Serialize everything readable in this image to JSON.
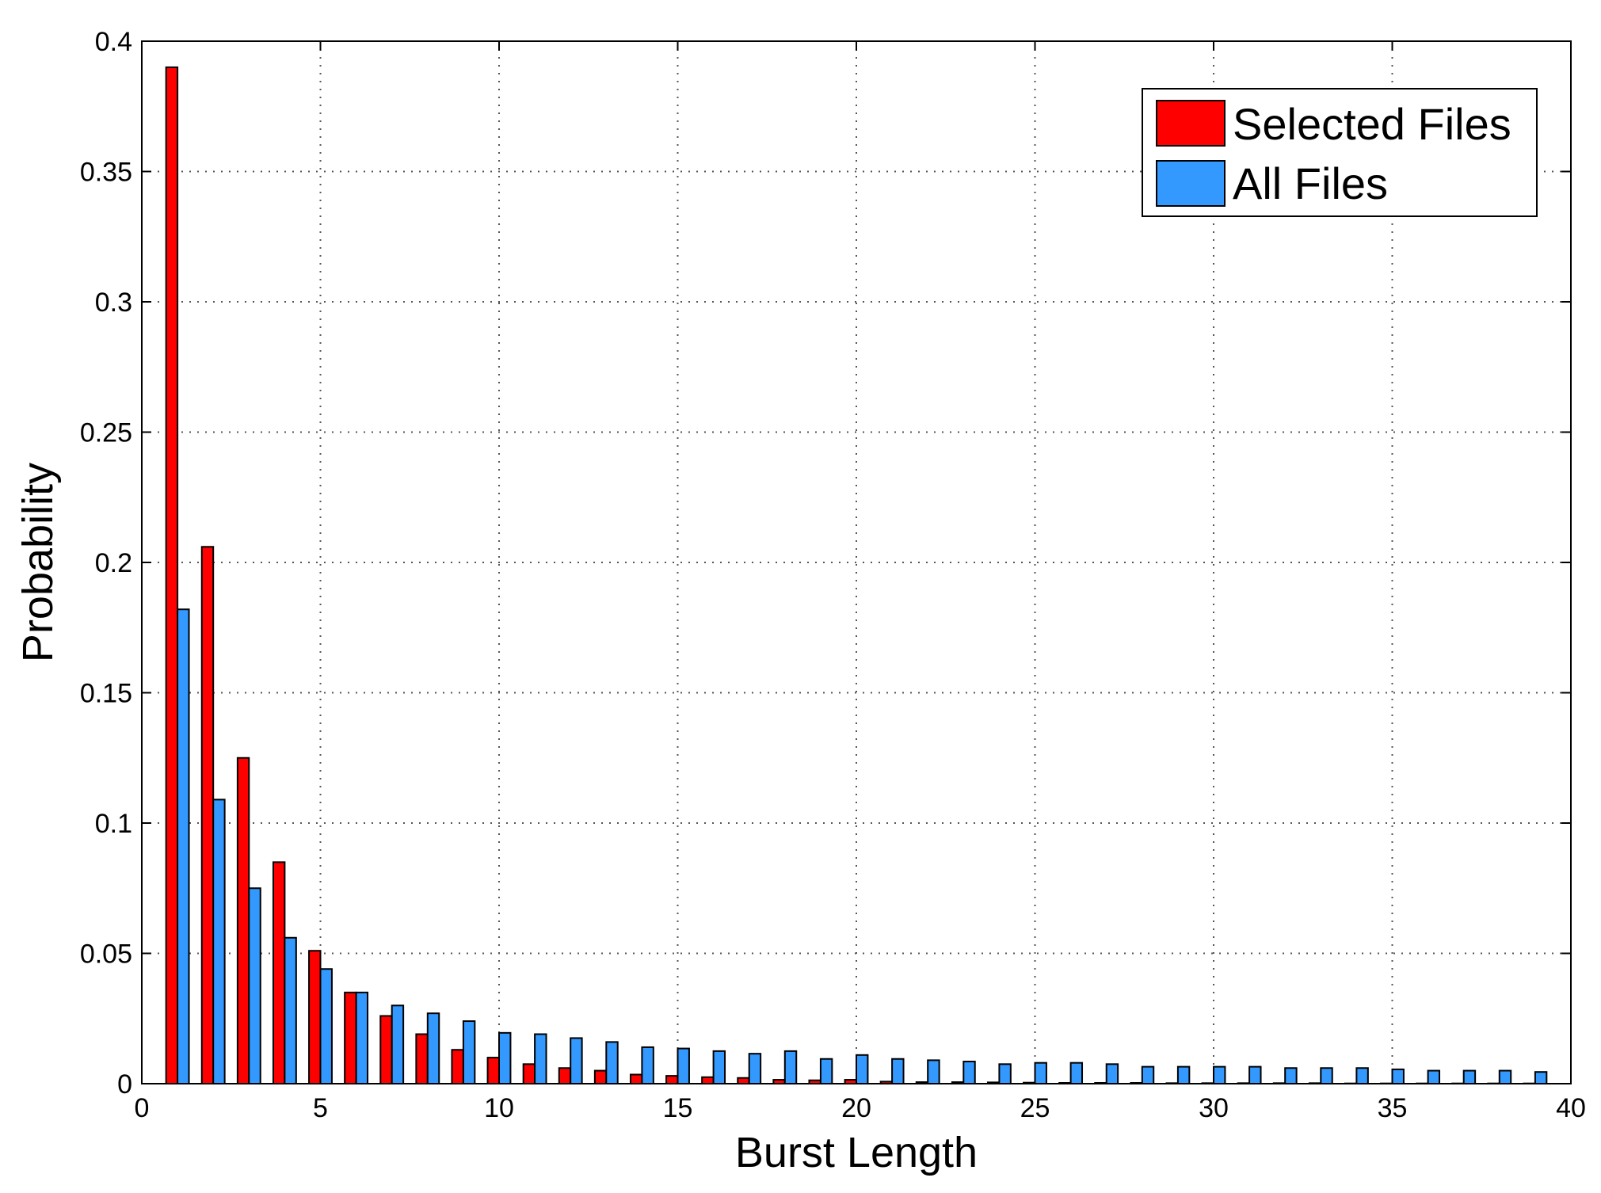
{
  "chart_data": {
    "type": "bar",
    "xlabel": "Burst Length",
    "ylabel": "Probability",
    "xlim": [
      0,
      40
    ],
    "ylim": [
      0,
      0.4
    ],
    "x_ticks": [
      0,
      5,
      10,
      15,
      20,
      25,
      30,
      35,
      40
    ],
    "y_ticks": [
      0,
      0.05,
      0.1,
      0.15,
      0.2,
      0.25,
      0.3,
      0.35,
      0.4
    ],
    "grid": true,
    "legend_position": "top-right",
    "x": [
      1,
      2,
      3,
      4,
      5,
      6,
      7,
      8,
      9,
      10,
      11,
      12,
      13,
      14,
      15,
      16,
      17,
      18,
      19,
      20,
      21,
      22,
      23,
      24,
      25,
      26,
      27,
      28,
      29,
      30,
      31,
      32,
      33,
      34,
      35,
      36,
      37,
      38,
      39
    ],
    "series": [
      {
        "name": "Selected Files",
        "color": "#ff0000",
        "values": [
          0.39,
          0.206,
          0.125,
          0.085,
          0.051,
          0.035,
          0.026,
          0.019,
          0.013,
          0.01,
          0.0075,
          0.006,
          0.005,
          0.0035,
          0.003,
          0.0025,
          0.0022,
          0.0015,
          0.0013,
          0.0015,
          0.0008,
          0.0006,
          0.0006,
          0.0005,
          0.0004,
          0.0003,
          0.0003,
          0.0003,
          0.0002,
          0.0002,
          0.0002,
          0.0002,
          0.0002,
          0.0001,
          0.0001,
          0.0001,
          0.0001,
          0.0001,
          0.0001
        ]
      },
      {
        "name": "All Files",
        "color": "#3399ff",
        "values": [
          0.182,
          0.109,
          0.075,
          0.056,
          0.044,
          0.035,
          0.03,
          0.027,
          0.024,
          0.0195,
          0.019,
          0.0175,
          0.016,
          0.014,
          0.0135,
          0.0125,
          0.0115,
          0.0125,
          0.0095,
          0.011,
          0.0095,
          0.009,
          0.0085,
          0.0075,
          0.008,
          0.008,
          0.0075,
          0.0065,
          0.0065,
          0.0065,
          0.0065,
          0.006,
          0.006,
          0.006,
          0.0055,
          0.005,
          0.005,
          0.005,
          0.0045
        ]
      }
    ]
  }
}
